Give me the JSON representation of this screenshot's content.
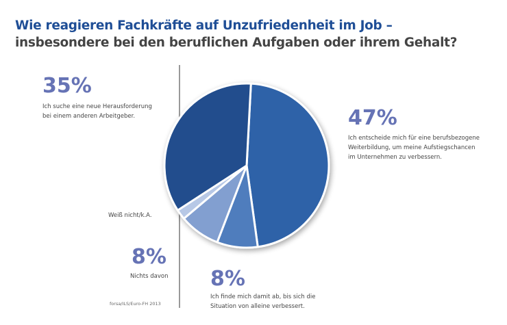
{
  "chart_data": {
    "type": "pie",
    "title": "Wie reagieren Fachkräfte auf Unzufriedenheit im Job –",
    "subtitle": "insbesondere bei den beruflichen Aufgaben oder ihrem Gehalt?",
    "source": "forsa/ILS/Euro-FH 2013",
    "slices": [
      {
        "value": 47,
        "label": "47%",
        "text": [
          "Ich entscheide mich für eine berufsbezogene",
          "Weiterbildung, um meine Aufstiegschancen",
          "im Unternehmen zu verbessern."
        ],
        "color": "#2f62a8"
      },
      {
        "value": 8,
        "label": "8%",
        "text": [
          "Ich finde mich damit ab, bis sich die",
          "Situation von alleine verbessert."
        ],
        "color": "#4f7dbd"
      },
      {
        "value": 8,
        "label": "8%",
        "text": [
          "Nichts davon"
        ],
        "color": "#829fd0"
      },
      {
        "value": 2,
        "label": "",
        "text": [
          "Weiß nicht/k.A."
        ],
        "color": "#b7c8e6"
      },
      {
        "value": 35,
        "label": "35%",
        "text": [
          "Ich suche eine neue Herausforderung",
          "bei einem anderen Arbeitgeber."
        ],
        "color": "#214d8d"
      }
    ]
  }
}
